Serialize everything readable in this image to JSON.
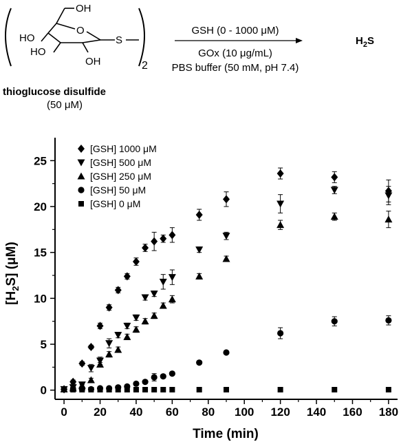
{
  "scheme": {
    "ring_labels": [
      "OH",
      "HO",
      "O",
      "HO",
      "OH",
      "S"
    ],
    "subscript": "2",
    "compound_name": "thioglucose disulfide",
    "compound_conc": "(50 μM)",
    "arrow_above": "GSH (0 - 1000 μM)",
    "arrow_below_1": "GOx (10 μg/mL)",
    "arrow_below_2": "PBS buffer (50 mM, pH 7.4)",
    "product": "H",
    "product_sub": "2",
    "product_tail": "S"
  },
  "chart_data": {
    "type": "scatter",
    "xlabel": "Time (min)",
    "ylabel_prefix": "[H",
    "ylabel_sub": "2",
    "ylabel_suffix": "S] (μM)",
    "xlim": [
      -5,
      185
    ],
    "ylim": [
      -1,
      27.5
    ],
    "xticks": [
      0,
      20,
      40,
      60,
      80,
      100,
      120,
      140,
      160,
      180
    ],
    "yticks": [
      0,
      5,
      10,
      15,
      20,
      25
    ],
    "legend_position": "top-left",
    "series": [
      {
        "name": "[GSH] 1000 μM",
        "marker": "diamond",
        "x": [
          0,
          5,
          10,
          15,
          20,
          25,
          30,
          35,
          40,
          45,
          50,
          55,
          60,
          75,
          90,
          120,
          150,
          180
        ],
        "y": [
          0.1,
          0.9,
          2.9,
          4.7,
          7.0,
          9.0,
          10.9,
          12.4,
          14.0,
          15.5,
          16.2,
          16.5,
          16.9,
          19.1,
          20.8,
          23.6,
          23.2,
          21.7
        ],
        "err": [
          0,
          0.2,
          0.2,
          0.2,
          0.3,
          0.3,
          0.3,
          0.3,
          0.4,
          0.4,
          1.0,
          0.4,
          0.8,
          0.6,
          0.8,
          0.6,
          0.6,
          1.2
        ]
      },
      {
        "name": "[GSH] 500 μM",
        "marker": "triangle-down",
        "x": [
          0,
          5,
          10,
          15,
          20,
          25,
          30,
          35,
          40,
          45,
          50,
          55,
          60,
          75,
          90,
          120,
          150,
          180
        ],
        "y": [
          0.1,
          0.3,
          0.6,
          2.4,
          3.2,
          5.1,
          6.0,
          7.0,
          7.9,
          10.1,
          10.5,
          11.8,
          12.3,
          15.3,
          16.8,
          20.3,
          21.8,
          21.2
        ],
        "err": [
          0,
          0.1,
          0.2,
          0.4,
          0.4,
          0.5,
          0.3,
          0.3,
          0.3,
          0.3,
          0.3,
          0.8,
          0.8,
          0.3,
          0.4,
          1.0,
          0.4,
          1.0
        ]
      },
      {
        "name": "[GSH] 250 μM",
        "marker": "triangle-up",
        "x": [
          0,
          5,
          10,
          15,
          20,
          25,
          30,
          35,
          40,
          45,
          50,
          55,
          60,
          75,
          90,
          120,
          150,
          180
        ],
        "y": [
          0.1,
          0.2,
          0.5,
          1.1,
          2.8,
          3.9,
          4.4,
          5.8,
          6.6,
          7.5,
          8.1,
          9.2,
          9.9,
          12.4,
          14.3,
          18.0,
          18.9,
          18.6
        ],
        "err": [
          0,
          0.1,
          0.1,
          0.2,
          0.2,
          0.3,
          0.3,
          0.3,
          0.3,
          0.3,
          0.3,
          0.3,
          0.4,
          0.3,
          0.3,
          0.5,
          0.4,
          0.9
        ]
      },
      {
        "name": "[GSH] 50 μM",
        "marker": "circle",
        "x": [
          0,
          5,
          10,
          15,
          20,
          25,
          30,
          35,
          40,
          45,
          50,
          55,
          60,
          75,
          90,
          120,
          150,
          180
        ],
        "y": [
          0.1,
          0.1,
          0.1,
          0.1,
          0.2,
          0.2,
          0.3,
          0.4,
          0.7,
          0.9,
          1.4,
          1.5,
          1.8,
          3.0,
          4.1,
          6.2,
          7.5,
          7.6
        ],
        "err": [
          0,
          0,
          0,
          0,
          0,
          0,
          0.1,
          0.1,
          0.1,
          0.2,
          0.4,
          0.2,
          0.1,
          0.1,
          0.1,
          0.6,
          0.5,
          0.5
        ]
      },
      {
        "name": "[GSH] 0 μM",
        "marker": "square",
        "x": [
          0,
          5,
          10,
          15,
          20,
          25,
          30,
          35,
          40,
          45,
          50,
          55,
          60,
          75,
          90,
          120,
          150,
          180
        ],
        "y": [
          0.05,
          0.05,
          0.05,
          0.05,
          0.05,
          0.05,
          0.05,
          0.05,
          0.05,
          0.05,
          0.05,
          0.05,
          0.05,
          0.05,
          0.05,
          0.05,
          0.05,
          0.05
        ],
        "err": [
          0,
          0,
          0,
          0,
          0,
          0,
          0,
          0,
          0,
          0,
          0,
          0,
          0,
          0,
          0,
          0,
          0,
          0
        ]
      }
    ]
  }
}
